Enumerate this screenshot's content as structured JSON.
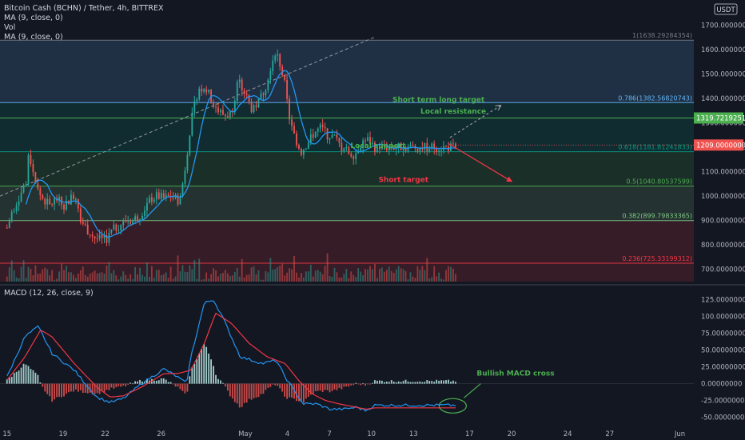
{
  "header": {
    "symbol_line": "Bitcoin Cash (BCHN) / Tether, 4h, BITTREX",
    "ma_line_1": "MA (9, close, 0)",
    "vol_label": "Vol",
    "ma_line_2": "MA (9, close, 0)"
  },
  "currency_badge": "USDT",
  "colors": {
    "background": "#131722",
    "up": "#26a69a",
    "down": "#ef5350",
    "ma": "#2196f3",
    "fib_line": "#5d606b",
    "fib_0_236": "#f23645",
    "fib_0_382": "#81c784",
    "fib_0_5": "#4caf50",
    "fib_0_618": "#089981",
    "fib_0_786": "#64b5f6",
    "fib_1": "#787b86",
    "annotation_green": "#4caf50",
    "annotation_red": "#f23645",
    "macd_line": "#2196f3",
    "signal_line": "#f23645"
  },
  "chart_data": [
    {
      "type": "candlestick",
      "title": "Bitcoin Cash (BCHN) / Tether, 4h, BITTREX",
      "ylim": [
        650,
        1770
      ],
      "y_ticks": [
        "700.00000000",
        "800.00000000",
        "900.00000000",
        "1000.00000000",
        "1100.00000000",
        "1200.00000000",
        "1300.00000000",
        "1400.00000000",
        "1500.00000000",
        "1600.00000000",
        "1700.00000000"
      ],
      "y_tick_values": [
        700,
        800,
        900,
        1000,
        1100,
        1200,
        1300,
        1400,
        1500,
        1600,
        1700
      ],
      "x_tick_labels": [
        "15",
        "19",
        "22",
        "26",
        "May",
        "4",
        "7",
        "10",
        "13",
        "17",
        "20",
        "24",
        "27",
        "Jun"
      ],
      "x_tick_days": [
        -16,
        -12,
        -9,
        -5,
        1,
        4,
        7,
        10,
        13,
        17,
        20,
        24,
        27,
        32
      ],
      "day_range": [
        -16.5,
        33
      ],
      "candles_day_range": [
        -16,
        16
      ],
      "price_path": [
        [
          0,
          870
        ],
        [
          0.012,
          940
        ],
        [
          0.03,
          1010
        ],
        [
          0.045,
          1070
        ],
        [
          0.048,
          1170
        ],
        [
          0.055,
          1130
        ],
        [
          0.065,
          1040
        ],
        [
          0.075,
          1000
        ],
        [
          0.085,
          980
        ],
        [
          0.095,
          960
        ],
        [
          0.11,
          990
        ],
        [
          0.125,
          960
        ],
        [
          0.14,
          990
        ],
        [
          0.155,
          1000
        ],
        [
          0.165,
          900
        ],
        [
          0.18,
          860
        ],
        [
          0.195,
          830
        ],
        [
          0.21,
          820
        ],
        [
          0.22,
          820
        ],
        [
          0.235,
          860
        ],
        [
          0.25,
          880
        ],
        [
          0.265,
          900
        ],
        [
          0.28,
          900
        ],
        [
          0.295,
          920
        ],
        [
          0.31,
          960
        ],
        [
          0.32,
          990
        ],
        [
          0.335,
          1000
        ],
        [
          0.35,
          990
        ],
        [
          0.365,
          1000
        ],
        [
          0.375,
          990
        ],
        [
          0.385,
          980
        ],
        [
          0.395,
          1090
        ],
        [
          0.41,
          1300
        ],
        [
          0.425,
          1430
        ],
        [
          0.44,
          1450
        ],
        [
          0.455,
          1400
        ],
        [
          0.47,
          1350
        ],
        [
          0.485,
          1330
        ],
        [
          0.5,
          1340
        ],
        [
          0.515,
          1470
        ],
        [
          0.53,
          1420
        ],
        [
          0.545,
          1360
        ],
        [
          0.56,
          1380
        ],
        [
          0.575,
          1440
        ],
        [
          0.59,
          1550
        ],
        [
          0.6,
          1600
        ],
        [
          0.61,
          1530
        ],
        [
          0.62,
          1450
        ],
        [
          0.63,
          1300
        ],
        [
          0.64,
          1250
        ],
        [
          0.655,
          1180
        ],
        [
          0.67,
          1220
        ],
        [
          0.685,
          1260
        ],
        [
          0.7,
          1280
        ],
        [
          0.715,
          1250
        ],
        [
          0.73,
          1240
        ],
        [
          0.745,
          1200
        ],
        [
          0.76,
          1180
        ],
        [
          0.775,
          1170
        ],
        [
          0.79,
          1220
        ],
        [
          0.805,
          1230
        ],
        [
          0.82,
          1200
        ],
        [
          1,
          1200
        ]
      ],
      "candle_count": 190,
      "last_price": "1209.00000000",
      "moving_average_period": 9,
      "fibonacci": [
        {
          "level": "1",
          "label": "1(1638.29284354)",
          "price": 1638.29284354
        },
        {
          "level": "0.786",
          "label": "0.786(1382.56820743)",
          "price": 1382.56820743
        },
        {
          "level": "0.618",
          "label": "0.618(1181.81241833)",
          "price": 1181.81241833
        },
        {
          "level": "0.5",
          "label": "0.5(1040.80537599)",
          "price": 1040.80537599
        },
        {
          "level": "0.382",
          "label": "0.382(899.79833365)",
          "price": 899.79833365
        },
        {
          "level": "0.236",
          "label": "0.236(725.33199312)",
          "price": 725.33199312
        }
      ],
      "horizontal_lines": [
        {
          "label": "1319.72192517",
          "price": 1319.72192517
        }
      ],
      "annotations": [
        {
          "text": "Short term long target",
          "day": 11.5,
          "price": 1385
        },
        {
          "text": "Local resistance",
          "day": 13.5,
          "price": 1337
        },
        {
          "text": "Local support",
          "day": 8.5,
          "price": 1197
        },
        {
          "text": "Short target",
          "day": 10.5,
          "price": 1058
        }
      ],
      "arrows": [
        {
          "from_day": 15.5,
          "from_price": 1215,
          "to_day": 20,
          "to_price": 1060,
          "style": "red"
        },
        {
          "from_day": 15.6,
          "from_price": 1240,
          "to_day": 19.2,
          "to_price": 1370,
          "style": "gray-dashed"
        }
      ],
      "trendline": {
        "from_day": -16.5,
        "from_price": 1000,
        "to_day": 10.2,
        "to_price": 1650
      }
    },
    {
      "type": "macd",
      "title": "MACD (12, 26, close, 9)",
      "ylim": [
        -60,
        140
      ],
      "y_ticks": [
        "-50.00000000",
        "-25.00000000",
        "0.00000000",
        "25.00000000",
        "50.00000000",
        "75.00000000",
        "100.00000000",
        "125.00000000"
      ],
      "y_tick_values": [
        -50,
        -25,
        0,
        25,
        50,
        75,
        100,
        125
      ],
      "macd_path": [
        [
          0,
          10
        ],
        [
          0.04,
          70
        ],
        [
          0.07,
          85
        ],
        [
          0.1,
          45
        ],
        [
          0.15,
          20
        ],
        [
          0.2,
          -20
        ],
        [
          0.23,
          -28
        ],
        [
          0.26,
          -22
        ],
        [
          0.3,
          0
        ],
        [
          0.35,
          22
        ],
        [
          0.38,
          10
        ],
        [
          0.4,
          0
        ],
        [
          0.41,
          40
        ],
        [
          0.44,
          120
        ],
        [
          0.46,
          125
        ],
        [
          0.48,
          100
        ],
        [
          0.52,
          40
        ],
        [
          0.57,
          30
        ],
        [
          0.6,
          35
        ],
        [
          0.62,
          10
        ],
        [
          0.64,
          -10
        ],
        [
          0.66,
          -30
        ],
        [
          0.69,
          -30
        ],
        [
          0.72,
          -38
        ],
        [
          0.75,
          -38
        ],
        [
          0.78,
          -35
        ],
        [
          0.8,
          -40
        ],
        [
          0.82,
          -32
        ],
        [
          1,
          -32
        ]
      ],
      "signal_path": [
        [
          0,
          5
        ],
        [
          0.04,
          40
        ],
        [
          0.075,
          80
        ],
        [
          0.1,
          70
        ],
        [
          0.15,
          30
        ],
        [
          0.2,
          -5
        ],
        [
          0.23,
          -20
        ],
        [
          0.26,
          -18
        ],
        [
          0.3,
          -5
        ],
        [
          0.35,
          15
        ],
        [
          0.38,
          15
        ],
        [
          0.41,
          20
        ],
        [
          0.44,
          60
        ],
        [
          0.465,
          105
        ],
        [
          0.5,
          90
        ],
        [
          0.54,
          60
        ],
        [
          0.58,
          40
        ],
        [
          0.62,
          30
        ],
        [
          0.65,
          5
        ],
        [
          0.68,
          -15
        ],
        [
          0.71,
          -25
        ],
        [
          0.74,
          -30
        ],
        [
          0.77,
          -34
        ],
        [
          0.8,
          -38
        ],
        [
          0.82,
          -36
        ],
        [
          1,
          -36
        ]
      ],
      "annotation": "Bullish MACD cross"
    }
  ]
}
